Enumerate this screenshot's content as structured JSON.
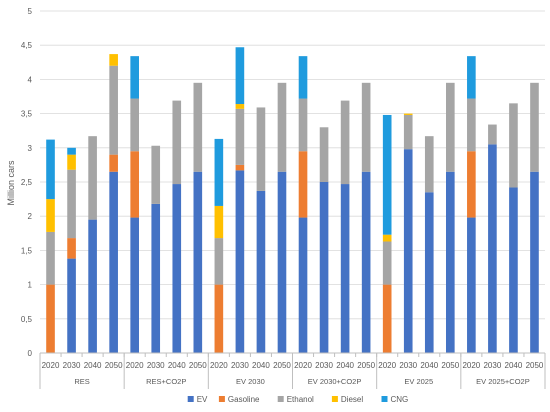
{
  "chart_data": {
    "type": "bar",
    "stacked": true,
    "ylabel": "Million cars",
    "ylim": [
      0,
      5
    ],
    "yticks": [
      "0",
      "0,5",
      "1",
      "1,5",
      "2",
      "2,5",
      "3",
      "3,5",
      "4",
      "4,5",
      "5"
    ],
    "years": [
      "2020",
      "2030",
      "2040",
      "2050"
    ],
    "groups": [
      "RES",
      "RES+CO2P",
      "EV 2030",
      "EV 2030+CO2P",
      "EV 2025",
      "EV 2025+CO2P"
    ],
    "grid": "horizontal",
    "legend_position": "bottom",
    "series": [
      {
        "name": "EV",
        "color": "#4472C4",
        "values": [
          0,
          1.38,
          1.95,
          2.65,
          1.98,
          2.18,
          2.47,
          2.65,
          0,
          2.67,
          2.37,
          2.65,
          1.98,
          2.5,
          2.47,
          2.65,
          0,
          2.98,
          2.35,
          2.65,
          1.98,
          3.05,
          2.42,
          2.65
        ]
      },
      {
        "name": "Gasoline",
        "color": "#ED7D31",
        "values": [
          1.0,
          0.3,
          0,
          0.25,
          0.97,
          0,
          0,
          0,
          1.0,
          0.08,
          0,
          0,
          0.97,
          0,
          0,
          0,
          1.0,
          0,
          0,
          0,
          0.97,
          0,
          0,
          0
        ]
      },
      {
        "name": "Ethanol",
        "color": "#A5A5A5",
        "values": [
          0.77,
          1.0,
          1.22,
          1.3,
          0.77,
          0.85,
          1.22,
          1.3,
          0.68,
          0.82,
          1.22,
          1.3,
          0.77,
          0.8,
          1.22,
          1.3,
          0.63,
          0.5,
          0.82,
          1.3,
          0.77,
          0.29,
          1.23,
          1.3
        ]
      },
      {
        "name": "Diesel",
        "color": "#FFC000",
        "values": [
          0.48,
          0.22,
          0,
          0.17,
          0,
          0,
          0,
          0,
          0.47,
          0.07,
          0,
          0,
          0,
          0,
          0,
          0,
          0.1,
          0.02,
          0,
          0,
          0,
          0,
          0,
          0
        ]
      },
      {
        "name": "CNG",
        "color": "#1F9BDE",
        "values": [
          0.87,
          0.1,
          0,
          0,
          0.62,
          0,
          0,
          0,
          0.98,
          0.83,
          0,
          0,
          0.62,
          0,
          0,
          0,
          1.75,
          0,
          0,
          0,
          0.62,
          0,
          0,
          0
        ]
      }
    ]
  }
}
